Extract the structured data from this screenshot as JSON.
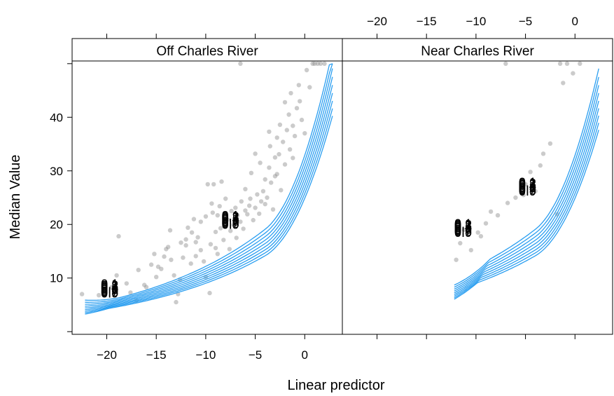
{
  "chart_data": {
    "type": "scatter",
    "xlabel": "Linear predictor",
    "ylabel": "Median Value",
    "xlim": [
      -23.5,
      3.8
    ],
    "ylim": [
      -0.5,
      50.5
    ],
    "x_ticks": [
      -20,
      -15,
      -10,
      -5,
      0
    ],
    "y_ticks": [
      10,
      20,
      30,
      40
    ],
    "x_tick_labels": [
      "−20",
      "−15",
      "−10",
      "−5",
      "0"
    ],
    "y_tick_labels": [
      "10",
      "20",
      "30",
      "40"
    ],
    "point_color": "#8c8c8c",
    "curve_color": "#2a9ef0",
    "quantile_labels": [
      "0.1",
      "0.2",
      "0.3",
      "0.4",
      "0.5",
      "0.6",
      "0.7",
      "0.8",
      "0.9"
    ],
    "panels": [
      {
        "strip": "Off Charles River",
        "curve_x_range": [
          -22.2,
          2.8
        ],
        "label_positions": [
          {
            "x": -19.7,
            "y": 7.2
          },
          {
            "x": -7.5,
            "y": 20
          }
        ],
        "points": [
          [
            -22.5,
            7
          ],
          [
            -20.8,
            6.8
          ],
          [
            -19.5,
            8.3
          ],
          [
            -19,
            10.5
          ],
          [
            -18.8,
            17.8
          ],
          [
            -18,
            9
          ],
          [
            -17.6,
            7.3
          ],
          [
            -17,
            5.8
          ],
          [
            -16.8,
            11.5
          ],
          [
            -16.2,
            8.7
          ],
          [
            -16,
            8.3
          ],
          [
            -15.5,
            12.5
          ],
          [
            -15.2,
            14.5
          ],
          [
            -15,
            10.2
          ],
          [
            -14.8,
            12.1
          ],
          [
            -14.5,
            11.7
          ],
          [
            -14.2,
            14
          ],
          [
            -14,
            15.4
          ],
          [
            -13.8,
            15.8
          ],
          [
            -13.5,
            13.4
          ],
          [
            -13.2,
            10.5
          ],
          [
            -13,
            5.5
          ],
          [
            -12.8,
            7
          ],
          [
            -12.5,
            16.6
          ],
          [
            -12.3,
            13.8
          ],
          [
            -12,
            17.2
          ],
          [
            -12,
            16.1
          ],
          [
            -11.8,
            19.4
          ],
          [
            -11.5,
            12.7
          ],
          [
            -11.4,
            18.5
          ],
          [
            -11.2,
            21
          ],
          [
            -11,
            14.1
          ],
          [
            -10.8,
            17.6
          ],
          [
            -10.5,
            15.2
          ],
          [
            -10.5,
            20.5
          ],
          [
            -10.2,
            13.1
          ],
          [
            -10,
            10.2
          ],
          [
            -10,
            21.5
          ],
          [
            -9.8,
            27.5
          ],
          [
            -9.6,
            7.2
          ],
          [
            -9.5,
            16.3
          ],
          [
            -9.3,
            22.2
          ],
          [
            -9.2,
            27.5
          ],
          [
            -9,
            18.6
          ],
          [
            -9,
            15.6
          ],
          [
            -8.8,
            14.5
          ],
          [
            -8.6,
            23.4
          ],
          [
            -8.5,
            19.3
          ],
          [
            -8.4,
            28
          ],
          [
            -8.2,
            17.1
          ],
          [
            -8,
            20.2
          ],
          [
            -8,
            24.8
          ],
          [
            -7.8,
            20.9
          ],
          [
            -7.6,
            15.4
          ],
          [
            -7.5,
            18.8
          ],
          [
            -7.4,
            22.5
          ],
          [
            -7.2,
            19.9
          ],
          [
            -7,
            23.1
          ],
          [
            -6.9,
            17.5
          ],
          [
            -6.8,
            21.7
          ],
          [
            -6.5,
            20.5
          ],
          [
            -6.4,
            24.3
          ],
          [
            -6.2,
            19.2
          ],
          [
            -6,
            22.6
          ],
          [
            -6,
            26.6
          ],
          [
            -5.8,
            21.9
          ],
          [
            -5.6,
            23.5
          ],
          [
            -5.5,
            24.8
          ],
          [
            -5.4,
            29.6
          ],
          [
            -5.2,
            20.8
          ],
          [
            -5,
            23.1
          ],
          [
            -5,
            33.2
          ],
          [
            -4.8,
            25.6
          ],
          [
            -4.6,
            22
          ],
          [
            -4.5,
            31.5
          ],
          [
            -4.4,
            24.3
          ],
          [
            -4.2,
            26.2
          ],
          [
            -4,
            23.8
          ],
          [
            -4,
            28.4
          ],
          [
            -3.8,
            25
          ],
          [
            -3.6,
            30.6
          ],
          [
            -3.5,
            34.6
          ],
          [
            -3.4,
            27.8
          ],
          [
            -3.2,
            22.8
          ],
          [
            -3,
            32.5
          ],
          [
            -3,
            29
          ],
          [
            -2.8,
            36.2
          ],
          [
            -2.6,
            33.1
          ],
          [
            -2.5,
            38.6
          ],
          [
            -2.4,
            26.4
          ],
          [
            -2.2,
            35.4
          ],
          [
            -2,
            31.2
          ],
          [
            -2,
            42.8
          ],
          [
            -1.8,
            37.6
          ],
          [
            -1.6,
            40.5
          ],
          [
            -1.5,
            34
          ],
          [
            -1.4,
            44.5
          ],
          [
            -1.2,
            38.4
          ],
          [
            -1,
            36.5
          ],
          [
            -0.8,
            41.7
          ],
          [
            -0.6,
            46
          ],
          [
            -0.5,
            43
          ],
          [
            -0.3,
            39.5
          ],
          [
            0,
            37
          ],
          [
            0.2,
            48.8
          ],
          [
            0.5,
            45.6
          ],
          [
            0.8,
            50
          ],
          [
            1,
            50
          ],
          [
            1.3,
            50
          ],
          [
            1.6,
            50
          ],
          [
            2,
            50
          ],
          [
            -6.5,
            50
          ],
          [
            -1.2,
            32.4
          ],
          [
            -2.8,
            29.4
          ],
          [
            -3.6,
            37.3
          ],
          [
            -8.8,
            21.7
          ],
          [
            -9.4,
            23.9
          ],
          [
            -11,
            16.7
          ],
          [
            -12.6,
            9.7
          ],
          [
            -13.6,
            18.9
          ]
        ]
      },
      {
        "strip": "Near Charles River",
        "curve_x_range": [
          -12.2,
          2.4
        ],
        "label_positions": [
          {
            "x": -11.3,
            "y": 18.5
          },
          {
            "x": -4.8,
            "y": 26.2
          }
        ],
        "points": [
          [
            -12,
            13.4
          ],
          [
            -11.6,
            16.5
          ],
          [
            -11.2,
            19
          ],
          [
            -10.5,
            15.2
          ],
          [
            -9.8,
            18.5
          ],
          [
            -9.5,
            17.8
          ],
          [
            -9,
            20.2
          ],
          [
            -8.5,
            22.4
          ],
          [
            -7.8,
            21.7
          ],
          [
            -6.8,
            24
          ],
          [
            -6,
            25
          ],
          [
            -5.2,
            25.5
          ],
          [
            -5,
            27.5
          ],
          [
            -4.5,
            29.8
          ],
          [
            -4,
            26.2
          ],
          [
            -3.5,
            31
          ],
          [
            -3.2,
            33.2
          ],
          [
            -2.5,
            35.1
          ],
          [
            -1.8,
            21.9
          ],
          [
            -1.2,
            46.4
          ],
          [
            -0.8,
            50
          ],
          [
            -0.2,
            48.2
          ],
          [
            0.5,
            50
          ],
          [
            -1.5,
            50
          ],
          [
            -7,
            50
          ]
        ]
      }
    ]
  }
}
